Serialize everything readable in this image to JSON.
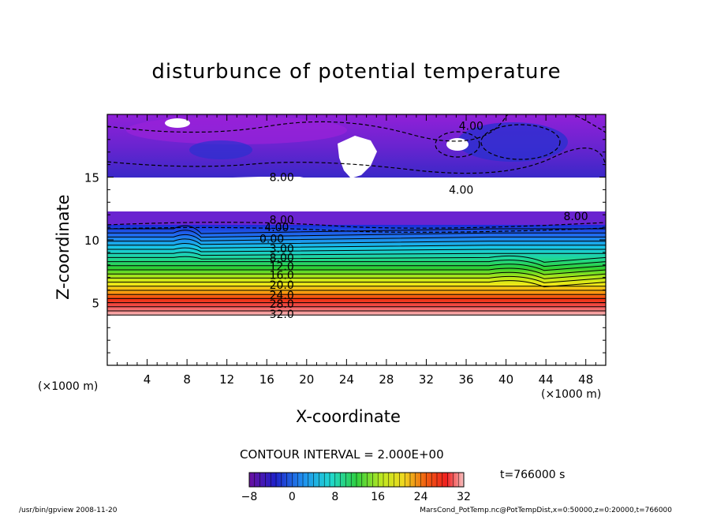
{
  "title": "disturbunce of potential temperature",
  "chart_data": {
    "type": "heatmap",
    "title": "disturbunce of potential temperature",
    "xlabel": "X-coordinate",
    "ylabel": "Z-coordinate",
    "x_unit": "(×1000 m)",
    "y_unit": "(×1000 m)",
    "xlim": [
      0,
      50
    ],
    "ylim": [
      0,
      20
    ],
    "x_ticks": [
      4,
      8,
      12,
      16,
      20,
      24,
      28,
      32,
      36,
      40,
      44,
      48
    ],
    "y_ticks": [
      5,
      10,
      15
    ],
    "contour_interval": 2.0,
    "color_range": [
      -8,
      32
    ],
    "colorbar_ticks": [
      -8,
      0,
      8,
      16,
      24,
      32
    ],
    "contour_labels": [
      {
        "text": "8.00",
        "x": 17.5,
        "z": 15.0
      },
      {
        "text": "4.00",
        "x": 36.5,
        "z": 19.1
      },
      {
        "text": "4.00",
        "x": 35.5,
        "z": 14.0
      },
      {
        "text": "8.00",
        "x": 17.5,
        "z": 11.6
      },
      {
        "text": "4.00",
        "x": 17.0,
        "z": 11.0
      },
      {
        "text": "0.00",
        "x": 16.5,
        "z": 10.1
      },
      {
        "text": "3.00",
        "x": 17.5,
        "z": 9.3
      },
      {
        "text": "8.00",
        "x": 17.5,
        "z": 8.6
      },
      {
        "text": "12.0",
        "x": 17.5,
        "z": 7.9
      },
      {
        "text": "16.0",
        "x": 17.5,
        "z": 7.2
      },
      {
        "text": "20.0",
        "x": 17.5,
        "z": 6.4
      },
      {
        "text": "24.0",
        "x": 17.5,
        "z": 5.6
      },
      {
        "text": "28.0",
        "x": 17.5,
        "z": 4.9
      },
      {
        "text": "32.0",
        "x": 17.5,
        "z": 4.1
      },
      {
        "text": "8.00",
        "x": 47.0,
        "z": 11.9
      }
    ]
  },
  "contour_interval_text": "CONTOUR INTERVAL = 2.000E+00",
  "time_text": "t=766000 s",
  "footer_left": "/usr/bin/gpview   2008-11-20",
  "footer_right": "MarsCond_PotTemp.nc@PotTempDist,x=0:50000,z=0:20000,t=766000",
  "colors": {
    "purple": "#8a1fd0",
    "blue": "#1e2ed8",
    "cyan": "#18c8e8",
    "green": "#30d040",
    "yellow": "#f0f020",
    "red": "#f02010",
    "pink": "#f8b0b0"
  }
}
